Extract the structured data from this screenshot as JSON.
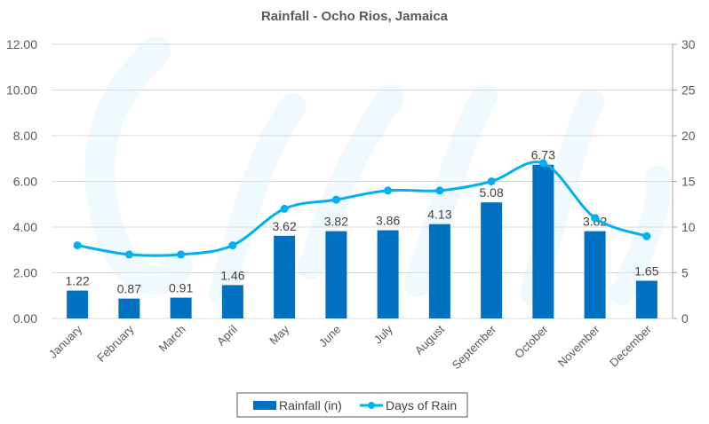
{
  "chart_data": {
    "type": "bar",
    "title": "Rainfall - Ocho Rios, Jamaica",
    "categories": [
      "January",
      "February",
      "March",
      "April",
      "May",
      "June",
      "July",
      "August",
      "September",
      "October",
      "November",
      "December"
    ],
    "series": [
      {
        "name": "Rainfall (in)",
        "type": "bar",
        "axis": "left",
        "color": "#0070C0",
        "values": [
          1.22,
          0.87,
          0.91,
          1.46,
          3.62,
          3.82,
          3.86,
          4.13,
          5.08,
          6.73,
          3.82,
          1.65
        ],
        "data_labels": [
          "1.22",
          "0.87",
          "0.91",
          "1.46",
          "3.62",
          "3.82",
          "3.86",
          "4.13",
          "5.08",
          "6.73",
          "3.82",
          "1.65"
        ]
      },
      {
        "name": "Days of Rain",
        "type": "line",
        "smooth": true,
        "markers": true,
        "axis": "right",
        "color": "#00B0F0",
        "values": [
          8,
          7,
          7,
          8,
          12,
          13,
          14,
          14,
          15,
          17,
          11,
          9
        ]
      }
    ],
    "y_left": {
      "ylim": [
        0,
        12
      ],
      "ticks": [
        0,
        2,
        4,
        6,
        8,
        10,
        12
      ],
      "tick_labels": [
        "0.00",
        "2.00",
        "4.00",
        "6.00",
        "8.00",
        "10.00",
        "12.00"
      ]
    },
    "y_right": {
      "ylim": [
        0,
        30
      ],
      "ticks": [
        0,
        5,
        10,
        15,
        20,
        25,
        30
      ],
      "tick_labels": [
        "0",
        "5",
        "10",
        "15",
        "20",
        "25",
        "30"
      ]
    },
    "xlabel": "",
    "ylabel": "",
    "grid": true,
    "legend": {
      "position": "bottom",
      "entries": [
        "Rainfall (in)",
        "Days of Rain"
      ]
    },
    "colors": {
      "grid": "#D9D9D9",
      "axis": "#A6A6A6",
      "text": "#595959",
      "watermark": "#F0F9FE"
    }
  }
}
